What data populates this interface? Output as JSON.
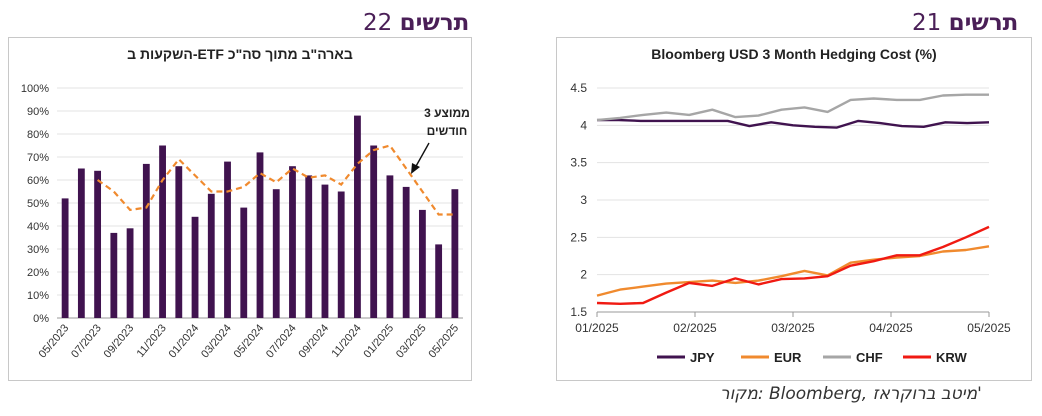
{
  "headings": {
    "right": {
      "word": "תרשים",
      "number": "21"
    },
    "left": {
      "word": "תרשים",
      "number": "22"
    }
  },
  "source_text": "מקור: Bloomberg, מיטב ברוקראז'",
  "colors": {
    "bar": "#40134f",
    "avg": "#f08a2e",
    "JPY": "#40134f",
    "EUR": "#f08a2e",
    "CHF": "#a6a6a6",
    "KRW": "#f01a12"
  },
  "chart_data": [
    {
      "type": "bar",
      "title": "השקעות ב-ETF בארה\"ב מתוך סה\"כ",
      "ylim": [
        0,
        100
      ],
      "yticks": [
        "0%",
        "10%",
        "20%",
        "30%",
        "40%",
        "50%",
        "60%",
        "70%",
        "80%",
        "90%",
        "100%"
      ],
      "x_tick_labels": [
        "05/2023",
        "07/2023",
        "09/2023",
        "11/2023",
        "01/2024",
        "03/2024",
        "05/2024",
        "07/2024",
        "09/2024",
        "11/2024",
        "01/2025",
        "03/2025",
        "05/2025"
      ],
      "categories": [
        "05/2023",
        "06/2023",
        "07/2023",
        "08/2023",
        "09/2023",
        "10/2023",
        "11/2023",
        "12/2023",
        "01/2024",
        "02/2024",
        "03/2024",
        "04/2024",
        "05/2024",
        "06/2024",
        "07/2024",
        "08/2024",
        "09/2024",
        "10/2024",
        "11/2024",
        "12/2024",
        "01/2025",
        "02/2025",
        "03/2025",
        "04/2025",
        "05/2025"
      ],
      "values": [
        52,
        65,
        64,
        37,
        39,
        67,
        75,
        66,
        44,
        54,
        68,
        48,
        72,
        56,
        66,
        62,
        58,
        55,
        88,
        75,
        62,
        57,
        47,
        32,
        56
      ],
      "moving_avg": {
        "annotation": [
          "ממוצע 3",
          "חודשים"
        ],
        "values": [
          null,
          null,
          60,
          55,
          47,
          48,
          60,
          69,
          62,
          55,
          55,
          57,
          63,
          59,
          65,
          61,
          62,
          58,
          67,
          73,
          75,
          65,
          55,
          45,
          45
        ]
      },
      "grid": true
    },
    {
      "type": "line",
      "title": "Bloomberg USD 3 Month Hedging Cost (%)",
      "ylim": [
        1.5,
        4.5
      ],
      "yticks": [
        "1.5",
        "2",
        "2.5",
        "3",
        "3.5",
        "4",
        "4.5"
      ],
      "x_tick_labels": [
        "01/2025",
        "02/2025",
        "03/2025",
        "04/2025",
        "05/2025"
      ],
      "legend_position": "bottom",
      "series": [
        {
          "name": "JPY",
          "values": [
            4.07,
            4.07,
            4.06,
            4.06,
            4.06,
            4.06,
            4.06,
            3.99,
            4.04,
            4.0,
            3.98,
            3.97,
            4.06,
            4.03,
            3.99,
            3.98,
            4.04,
            4.03,
            4.04
          ]
        },
        {
          "name": "EUR",
          "values": [
            1.72,
            1.8,
            1.84,
            1.88,
            1.9,
            1.92,
            1.89,
            1.92,
            1.98,
            2.05,
            1.99,
            2.16,
            2.2,
            2.23,
            2.25,
            2.31,
            2.33,
            2.38
          ]
        },
        {
          "name": "CHF",
          "values": [
            4.07,
            4.1,
            4.14,
            4.17,
            4.14,
            4.21,
            4.11,
            4.13,
            4.21,
            4.24,
            4.18,
            4.34,
            4.36,
            4.34,
            4.34,
            4.4,
            4.41,
            4.41
          ]
        },
        {
          "name": "KRW",
          "values": [
            1.62,
            1.61,
            1.62,
            1.76,
            1.89,
            1.85,
            1.95,
            1.87,
            1.94,
            1.95,
            1.98,
            2.12,
            2.18,
            2.26,
            2.26,
            2.37,
            2.5,
            2.64
          ]
        }
      ],
      "grid": true
    }
  ]
}
